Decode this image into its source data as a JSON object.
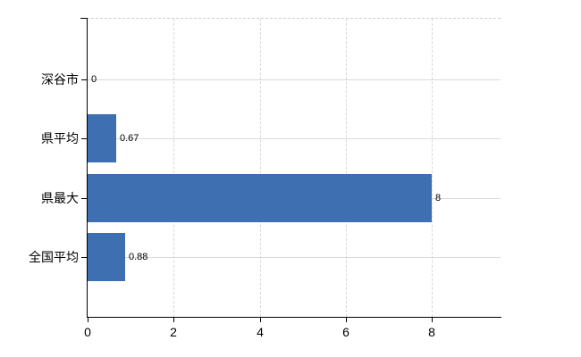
{
  "chart_data": {
    "type": "bar",
    "orientation": "horizontal",
    "title": "",
    "xlabel": "",
    "ylabel": "",
    "categories": [
      "深谷市",
      "県平均",
      "県最大",
      "全国平均"
    ],
    "values": [
      0,
      0.67,
      8,
      0.88
    ],
    "value_labels": [
      "0",
      "0.67",
      "8",
      "0.88"
    ],
    "x_tick_labels": [
      "0",
      "2",
      "4",
      "6",
      "8"
    ],
    "x_tick_values": [
      0,
      2,
      4,
      6,
      8
    ],
    "xlim": [
      0,
      9.6
    ],
    "legend_position": "none",
    "grid": {
      "vertical": "dashed",
      "horizontal": "solid"
    },
    "colors": {
      "bar": "#3e6fb0",
      "vertical_grid": "#d7d7d7",
      "horizontal_grid": "#d6dbd6",
      "axis": "#000000",
      "top_border": "#cfcfcf",
      "text": "#000000",
      "background": "#ffffff"
    }
  }
}
